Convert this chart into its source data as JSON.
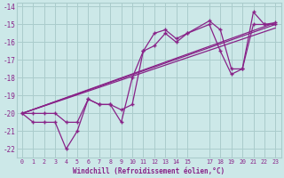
{
  "xlabel": "Windchill (Refroidissement éolien,°C)",
  "bg_color": "#cce8e8",
  "grid_color": "#aacccc",
  "line_color": "#882288",
  "xlim": [
    -0.5,
    23.5
  ],
  "ylim": [
    -22.5,
    -13.8
  ],
  "xticks": [
    0,
    1,
    2,
    3,
    4,
    5,
    6,
    7,
    8,
    9,
    10,
    11,
    12,
    13,
    14,
    15,
    17,
    18,
    19,
    20,
    21,
    22,
    23
  ],
  "yticks": [
    -14,
    -15,
    -16,
    -17,
    -18,
    -19,
    -20,
    -21,
    -22
  ],
  "series": [
    {
      "x": [
        0,
        1,
        2,
        3,
        4,
        5,
        6,
        7,
        8,
        9,
        10,
        11,
        12,
        13,
        14,
        15,
        17,
        18,
        19,
        20,
        21,
        22,
        23
      ],
      "y": [
        -20.0,
        -20.0,
        -20.0,
        -20.0,
        -20.5,
        -20.5,
        -19.2,
        -19.5,
        -19.5,
        -19.8,
        -19.5,
        -16.5,
        -15.5,
        -15.3,
        -15.8,
        -15.5,
        -14.8,
        -15.3,
        -17.5,
        -17.5,
        -14.3,
        -15.0,
        -14.9
      ],
      "marker": true
    },
    {
      "x": [
        0,
        1,
        2,
        3,
        4,
        5,
        6,
        7,
        8,
        9,
        10,
        11,
        12,
        13,
        14,
        15,
        17,
        18,
        19,
        20,
        21,
        22,
        23
      ],
      "y": [
        -20.0,
        -20.5,
        -20.5,
        -20.5,
        -22.0,
        -21.0,
        -19.2,
        -19.5,
        -19.5,
        -20.5,
        -18.0,
        -16.5,
        -16.2,
        -15.5,
        -16.0,
        -15.5,
        -15.0,
        -16.5,
        -17.8,
        -17.5,
        -15.0,
        -15.0,
        -15.0
      ],
      "marker": true
    },
    {
      "x": [
        0,
        23
      ],
      "y": [
        -20.0,
        -14.9
      ],
      "marker": false
    },
    {
      "x": [
        0,
        23
      ],
      "y": [
        -20.0,
        -15.0
      ],
      "marker": false
    },
    {
      "x": [
        0,
        23
      ],
      "y": [
        -20.0,
        -15.2
      ],
      "marker": false
    }
  ]
}
